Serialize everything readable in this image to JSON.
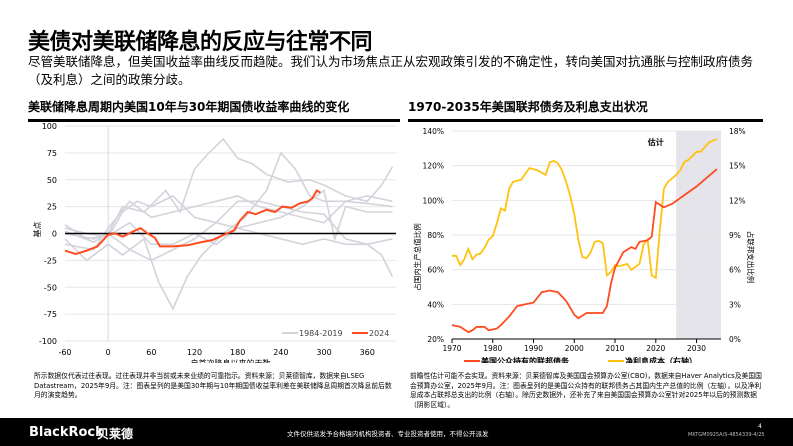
{
  "title": "美债对美联储降息的反应与往常不同",
  "subtitle": "尽管美联储降息，但美国收益率曲线反而趋陡。我们认为市场焦点正从宏观政策引发的不确定性，转向美国对抗通胀与控制政府债务（及利息）之间的政策分歧。",
  "chart_data": [
    {
      "type": "line",
      "title": "美联储降息周期内美国10年与30年期国债收益率曲线的变化",
      "xlabel": "自首次降息以来的天数",
      "ylabel": "基点",
      "xlim": [
        -60,
        400
      ],
      "ylim": [
        -100,
        100
      ],
      "xticks": [
        "-60",
        "0",
        "60",
        "120",
        "180",
        "240",
        "300",
        "360"
      ],
      "yticks": [
        "100",
        "75",
        "50",
        "25",
        "0",
        "-25",
        "-50",
        "-75",
        "-100"
      ],
      "grid": true,
      "legend": "bottom-right",
      "series": [
        {
          "name": "1984-2019",
          "color": "#d3d3db",
          "lines": [
            [
              [
                -60,
                5
              ],
              [
                -30,
                0
              ],
              [
                0,
                -3
              ],
              [
                20,
                20
              ],
              [
                40,
                30
              ],
              [
                60,
                25
              ],
              [
                90,
                35
              ],
              [
                120,
                15
              ],
              [
                150,
                10
              ],
              [
                180,
                5
              ],
              [
                210,
                0
              ],
              [
                240,
                -5
              ],
              [
                270,
                -10
              ],
              [
                300,
                -5
              ],
              [
                330,
                -10
              ],
              [
                360,
                -10
              ],
              [
                380,
                -20
              ],
              [
                395,
                -40
              ]
            ],
            [
              [
                -60,
                0
              ],
              [
                -20,
                -5
              ],
              [
                0,
                0
              ],
              [
                20,
                25
              ],
              [
                50,
                20
              ],
              [
                80,
                40
              ],
              [
                100,
                20
              ],
              [
                120,
                60
              ],
              [
                140,
                75
              ],
              [
                160,
                88
              ],
              [
                180,
                70
              ],
              [
                200,
                65
              ],
              [
                220,
                55
              ],
              [
                250,
                48
              ],
              [
                280,
                50
              ],
              [
                300,
                45
              ],
              [
                330,
                35
              ],
              [
                360,
                30
              ],
              [
                380,
                45
              ],
              [
                395,
                62
              ]
            ],
            [
              [
                -60,
                -5
              ],
              [
                -30,
                -25
              ],
              [
                0,
                -10
              ],
              [
                20,
                -20
              ],
              [
                50,
                -5
              ],
              [
                70,
                -45
              ],
              [
                90,
                -70
              ],
              [
                110,
                -40
              ],
              [
                130,
                -20
              ],
              [
                160,
                0
              ],
              [
                190,
                15
              ],
              [
                220,
                40
              ],
              [
                240,
                75
              ],
              [
                260,
                60
              ],
              [
                280,
                35
              ],
              [
                300,
                30
              ],
              [
                330,
                30
              ],
              [
                360,
                28
              ],
              [
                395,
                25
              ]
            ],
            [
              [
                -60,
                -10
              ],
              [
                -20,
                -15
              ],
              [
                0,
                5
              ],
              [
                30,
                30
              ],
              [
                60,
                15
              ],
              [
                90,
                20
              ],
              [
                120,
                25
              ],
              [
                150,
                30
              ],
              [
                180,
                35
              ],
              [
                210,
                25
              ],
              [
                240,
                20
              ],
              [
                270,
                15
              ],
              [
                300,
                10
              ],
              [
                330,
                30
              ],
              [
                360,
                35
              ],
              [
                395,
                30
              ]
            ],
            [
              [
                -60,
                8
              ],
              [
                -30,
                -5
              ],
              [
                0,
                -2
              ],
              [
                30,
                10
              ],
              [
                60,
                -10
              ],
              [
                90,
                -10
              ],
              [
                120,
                0
              ],
              [
                150,
                -10
              ],
              [
                180,
                5
              ],
              [
                210,
                10
              ],
              [
                240,
                15
              ],
              [
                270,
                25
              ],
              [
                300,
                40
              ],
              [
                315,
                -5
              ],
              [
                330,
                25
              ],
              [
                360,
                20
              ],
              [
                395,
                20
              ]
            ],
            [
              [
                -60,
                2
              ],
              [
                -20,
                -8
              ],
              [
                0,
                0
              ],
              [
                30,
                -15
              ],
              [
                60,
                -25
              ],
              [
                90,
                -15
              ],
              [
                120,
                -5
              ],
              [
                150,
                10
              ],
              [
                180,
                30
              ],
              [
                210,
                30
              ],
              [
                240,
                25
              ],
              [
                270,
                20
              ],
              [
                300,
                18
              ],
              [
                330,
                -5
              ],
              [
                360,
                -10
              ],
              [
                395,
                -5
              ]
            ]
          ]
        },
        {
          "name": "2024",
          "color": "#ff4b1f",
          "points": [
            [
              -60,
              -16
            ],
            [
              -45,
              -19
            ],
            [
              -30,
              -16
            ],
            [
              -15,
              -12
            ],
            [
              0,
              -1
            ],
            [
              10,
              0
            ],
            [
              20,
              -3
            ],
            [
              35,
              2
            ],
            [
              45,
              5
            ],
            [
              55,
              0
            ],
            [
              65,
              -4
            ],
            [
              72,
              -12
            ],
            [
              90,
              -12
            ],
            [
              110,
              -11
            ],
            [
              130,
              -8
            ],
            [
              145,
              -6
            ],
            [
              155,
              -3
            ],
            [
              165,
              0
            ],
            [
              175,
              3
            ],
            [
              183,
              12
            ],
            [
              194,
              20
            ],
            [
              205,
              18
            ],
            [
              220,
              22
            ],
            [
              232,
              20
            ],
            [
              242,
              25
            ],
            [
              255,
              24
            ],
            [
              266,
              28
            ],
            [
              278,
              30
            ],
            [
              284,
              33
            ],
            [
              290,
              40
            ],
            [
              295,
              38
            ]
          ]
        }
      ]
    },
    {
      "type": "line",
      "title": "1970-2035年美国联邦债务及利息支出状况",
      "xlim": [
        1970,
        2036
      ],
      "ylim_left": [
        20,
        140
      ],
      "ylim_right": [
        0,
        18
      ],
      "ylabel_left": "占国内生产总值比例",
      "ylabel_right": "占联邦支出比例",
      "xticks": [
        "1970",
        "1980",
        "1990",
        "2000",
        "2010",
        "2020",
        "2030"
      ],
      "yticks_left": [
        "140%",
        "120%",
        "100%",
        "80%",
        "60%",
        "40%",
        "20%"
      ],
      "yticks_right": [
        "18%",
        "15%",
        "12%",
        "9%",
        "6%",
        "3%",
        "0%"
      ],
      "shaded": {
        "from": 2025,
        "to": 2036,
        "label": "估计",
        "color": "#e4e4ea"
      },
      "legend": "bottom",
      "series": [
        {
          "name": "美国公众持有的联邦债务",
          "axis": "left",
          "color": "#ff4b1f",
          "points": [
            [
              1970,
              28
            ],
            [
              1972,
              27
            ],
            [
              1974,
              24
            ],
            [
              1975,
              25
            ],
            [
              1976,
              27
            ],
            [
              1978,
              27
            ],
            [
              1979,
              25
            ],
            [
              1981,
              26
            ],
            [
              1982,
              28
            ],
            [
              1984,
              33
            ],
            [
              1986,
              39
            ],
            [
              1988,
              40
            ],
            [
              1990,
              41
            ],
            [
              1992,
              47
            ],
            [
              1994,
              48
            ],
            [
              1996,
              47
            ],
            [
              1998,
              42
            ],
            [
              2000,
              34
            ],
            [
              2001,
              32
            ],
            [
              2003,
              35
            ],
            [
              2005,
              35
            ],
            [
              2007,
              35
            ],
            [
              2008,
              39
            ],
            [
              2009,
              52
            ],
            [
              2010,
              61
            ],
            [
              2012,
              70
            ],
            [
              2014,
              73
            ],
            [
              2015,
              72
            ],
            [
              2016,
              76
            ],
            [
              2018,
              77
            ],
            [
              2019,
              79
            ],
            [
              2020,
              99
            ],
            [
              2022,
              96
            ],
            [
              2024,
              98
            ],
            [
              2030,
              108
            ],
            [
              2035,
              118
            ]
          ]
        },
        {
          "name": "净利息成本（右轴）",
          "axis": "right",
          "color": "#ffc20e",
          "points": [
            [
              1970,
              7.2
            ],
            [
              1971,
              7.2
            ],
            [
              1972,
              6.4
            ],
            [
              1973,
              6.9
            ],
            [
              1974,
              7.8
            ],
            [
              1975,
              6.9
            ],
            [
              1976,
              7.3
            ],
            [
              1977,
              7.4
            ],
            [
              1978,
              7.9
            ],
            [
              1979,
              8.6
            ],
            [
              1980,
              8.9
            ],
            [
              1981,
              10
            ],
            [
              1982,
              11.3
            ],
            [
              1983,
              11.1
            ],
            [
              1984,
              13
            ],
            [
              1985,
              13.6
            ],
            [
              1986,
              13.7
            ],
            [
              1987,
              13.8
            ],
            [
              1989,
              14.8
            ],
            [
              1991,
              14.6
            ],
            [
              1993,
              14.2
            ],
            [
              1994,
              15.3
            ],
            [
              1995,
              15.4
            ],
            [
              1996,
              15.2
            ],
            [
              1997,
              14.6
            ],
            [
              1998,
              13.6
            ],
            [
              1999,
              12.4
            ],
            [
              2000,
              10.8
            ],
            [
              2001,
              8.6
            ],
            [
              2002,
              7.1
            ],
            [
              2003,
              7
            ],
            [
              2004,
              7.5
            ],
            [
              2005,
              8.4
            ],
            [
              2006,
              8.5
            ],
            [
              2007,
              8.3
            ],
            [
              2008,
              5.5
            ],
            [
              2009,
              5.8
            ],
            [
              2010,
              6.4
            ],
            [
              2011,
              6.3
            ],
            [
              2013,
              6.5
            ],
            [
              2014,
              6.0
            ],
            [
              2016,
              6.5
            ],
            [
              2017,
              8.2
            ],
            [
              2018,
              8.6
            ],
            [
              2019,
              5.5
            ],
            [
              2020,
              5.3
            ],
            [
              2021,
              9.5
            ],
            [
              2022,
              13
            ],
            [
              2023,
              13.6
            ],
            [
              2025,
              14.2
            ],
            [
              2026,
              14.6
            ],
            [
              2027,
              15.3
            ],
            [
              2028,
              15.5
            ],
            [
              2030,
              16.2
            ],
            [
              2031,
              16.2
            ],
            [
              2033,
              17
            ],
            [
              2035,
              17.3
            ]
          ]
        }
      ]
    }
  ],
  "note_left": "所示数据仅代表过往表现。过往表现并非当前或未来业绩的可靠指示。资料来源：贝莱德智库，数据来自LSEG Datastream，2025年9月。注：图表呈列的是美国30年期与10年期国债收益率利差在美联储降息周期首次降息前后数月的演变趋势。",
  "note_right": "前瞻性估计可能不会实现。资料来源：贝莱德智库及美国国会预算办公室(CBO)，数据来自Haver Analytics及美国国会预算办公室，2025年9月。注：图表呈列的是美国公众持有的联邦债务占其国内生产总值的比例（左轴），以及净利息成本占联邦总支出的比例（右轴）。除历史数据外，还补充了来自美国国会预算办公室针对2025年以后的预测数据（阴影区域）。",
  "footer": {
    "brand": "BlackRock",
    "brand_cn": "贝莱德",
    "disclaimer": "文件仅供派发予合格境内机构投资者、专业投资者使用，不得公开派发",
    "code": "MKTGM0925A/S-4854339-4/25",
    "page": "4"
  }
}
